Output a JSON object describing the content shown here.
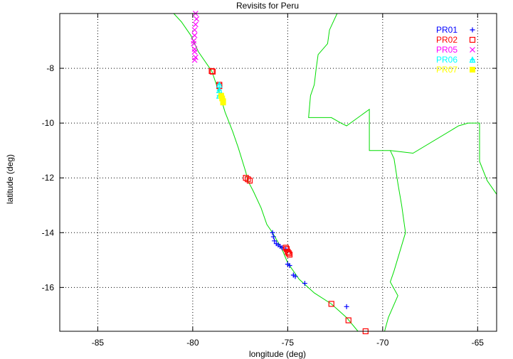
{
  "chart_data": {
    "type": "scatter",
    "title": "Revisits for Peru",
    "xlabel": "longitude (deg)",
    "ylabel": "latitude (deg)",
    "xlim": [
      -87,
      -64
    ],
    "ylim": [
      -17.6,
      -6.0
    ],
    "xticks": [
      -85,
      -80,
      -75,
      -70,
      -65
    ],
    "yticks": [
      -8,
      -10,
      -12,
      -14,
      -16
    ],
    "grid": true,
    "legend_position": "top-right",
    "series": [
      {
        "name": "PR01",
        "color": "#0000ff",
        "marker": "plus",
        "points": [
          [
            -75.8,
            -14.0
          ],
          [
            -75.75,
            -14.15
          ],
          [
            -75.7,
            -14.3
          ],
          [
            -75.6,
            -14.4
          ],
          [
            -75.5,
            -14.45
          ],
          [
            -75.4,
            -14.5
          ],
          [
            -75.3,
            -14.55
          ],
          [
            -75.1,
            -14.6
          ],
          [
            -75.0,
            -15.15
          ],
          [
            -74.9,
            -15.2
          ],
          [
            -74.7,
            -15.55
          ],
          [
            -74.6,
            -15.6
          ],
          [
            -74.1,
            -15.85
          ],
          [
            -71.9,
            -16.7
          ]
        ]
      },
      {
        "name": "PR02",
        "color": "#ff0000",
        "marker": "square",
        "points": [
          [
            -79.0,
            -8.1
          ],
          [
            -78.95,
            -8.12
          ],
          [
            -78.6,
            -8.6
          ],
          [
            -78.6,
            -8.65
          ],
          [
            -77.2,
            -12.0
          ],
          [
            -77.1,
            -12.05
          ],
          [
            -77.0,
            -12.1
          ],
          [
            -75.1,
            -14.55
          ],
          [
            -75.05,
            -14.6
          ],
          [
            -75.0,
            -14.7
          ],
          [
            -74.95,
            -14.75
          ],
          [
            -74.9,
            -14.8
          ],
          [
            -72.7,
            -16.6
          ],
          [
            -71.8,
            -17.2
          ],
          [
            -70.9,
            -17.6
          ]
        ]
      },
      {
        "name": "PR05",
        "color": "#ff00ff",
        "marker": "x",
        "points": [
          [
            -79.85,
            -6.0
          ],
          [
            -79.8,
            -6.2
          ],
          [
            -79.85,
            -6.4
          ],
          [
            -79.9,
            -6.6
          ],
          [
            -79.9,
            -6.8
          ],
          [
            -79.95,
            -7.0
          ],
          [
            -79.95,
            -7.1
          ],
          [
            -79.9,
            -7.3
          ],
          [
            -79.9,
            -7.4
          ],
          [
            -79.85,
            -7.6
          ],
          [
            -79.9,
            -7.7
          ]
        ]
      },
      {
        "name": "PR06",
        "color": "#00ffff",
        "marker": "plus-triangle",
        "points": [
          [
            -78.6,
            -8.6
          ],
          [
            -78.6,
            -8.8
          ],
          [
            -78.6,
            -9.0
          ]
        ]
      },
      {
        "name": "PR07",
        "color": "#ffff00",
        "marker": "filled-square",
        "points": [
          [
            -78.5,
            -9.0
          ],
          [
            -78.45,
            -9.1
          ],
          [
            -78.4,
            -9.2
          ],
          [
            -78.4,
            -9.25
          ]
        ]
      }
    ],
    "coastline": [
      [
        -81.0,
        -6.0
      ],
      [
        -80.6,
        -6.3
      ],
      [
        -80.1,
        -6.8
      ],
      [
        -79.7,
        -7.4
      ],
      [
        -79.2,
        -7.9
      ],
      [
        -79.0,
        -8.1
      ],
      [
        -78.6,
        -8.9
      ],
      [
        -78.3,
        -9.6
      ],
      [
        -77.9,
        -10.3
      ],
      [
        -77.6,
        -10.9
      ],
      [
        -77.2,
        -11.8
      ],
      [
        -77.1,
        -12.1
      ],
      [
        -76.8,
        -12.5
      ],
      [
        -76.4,
        -13.1
      ],
      [
        -76.1,
        -13.7
      ],
      [
        -75.8,
        -14.0
      ],
      [
        -75.3,
        -14.6
      ],
      [
        -75.0,
        -15.1
      ],
      [
        -74.4,
        -15.7
      ],
      [
        -73.6,
        -16.2
      ],
      [
        -72.7,
        -16.6
      ],
      [
        -71.9,
        -17.1
      ],
      [
        -71.3,
        -17.6
      ]
    ],
    "border_lines": [
      [
        [
          -72.4,
          -6.0
        ],
        [
          -72.8,
          -6.6
        ],
        [
          -72.9,
          -7.1
        ],
        [
          -73.4,
          -7.5
        ],
        [
          -73.5,
          -8.0
        ],
        [
          -73.6,
          -8.6
        ],
        [
          -73.8,
          -9.0
        ],
        [
          -73.9,
          -9.8
        ],
        [
          -72.7,
          -9.8
        ],
        [
          -72.2,
          -10.0
        ],
        [
          -71.9,
          -10.1
        ],
        [
          -70.7,
          -9.5
        ],
        [
          -70.7,
          -11.0
        ],
        [
          -69.6,
          -11.0
        ],
        [
          -69.4,
          -11.3
        ],
        [
          -69.2,
          -12.2
        ],
        [
          -69.0,
          -13.0
        ],
        [
          -68.8,
          -14.0
        ],
        [
          -69.4,
          -15.4
        ],
        [
          -69.6,
          -15.8
        ],
        [
          -69.2,
          -16.3
        ],
        [
          -69.7,
          -17.1
        ],
        [
          -69.9,
          -17.6
        ]
      ],
      [
        [
          -69.6,
          -11.0
        ],
        [
          -68.4,
          -11.1
        ],
        [
          -66.0,
          -10.1
        ],
        [
          -65.5,
          -10.0
        ],
        [
          -64.9,
          -10.0
        ],
        [
          -64.9,
          -11.4
        ],
        [
          -64.5,
          -12.1
        ],
        [
          -64.0,
          -12.6
        ]
      ]
    ]
  }
}
